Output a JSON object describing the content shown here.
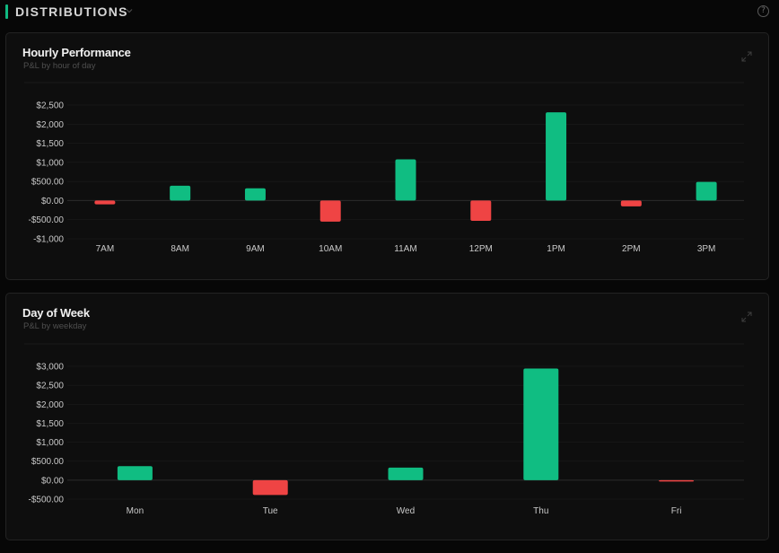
{
  "header": {
    "title": "DISTRIBUTIONS",
    "accent_color": "#10b981",
    "dropdown_icon": "chevron-down-icon",
    "help_icon": "help-circle-icon",
    "help_glyph": "?"
  },
  "colors": {
    "positive": "#10bd82",
    "negative": "#ef4444",
    "axis_text": "#c9c9c9",
    "grid": "#1c1c1c"
  },
  "panels": {
    "hourly": {
      "title": "Hourly Performance",
      "subtitle": "P&L by hour of day",
      "expand_icon": "expand-icon"
    },
    "weekday": {
      "title": "Day of Week",
      "subtitle": "P&L by weekday",
      "expand_icon": "expand-icon"
    }
  },
  "chart_data": [
    {
      "type": "bar",
      "title": "Hourly Performance",
      "subtitle": "P&L by hour of day",
      "categories": [
        "7AM",
        "8AM",
        "9AM",
        "10AM",
        "11AM",
        "12PM",
        "1PM",
        "2PM",
        "3PM"
      ],
      "values": [
        -100,
        390,
        320,
        -550,
        1080,
        -530,
        2310,
        -150,
        490
      ],
      "yticks": [
        2500,
        2000,
        1500,
        1000,
        500,
        0,
        -500,
        -1000
      ],
      "ytick_labels": [
        "$2,500",
        "$2,000",
        "$1,500",
        "$1,000",
        "$500.00",
        "$0.00",
        "-$500.00",
        "-$1,000"
      ],
      "ylim": [
        -1000,
        2500
      ],
      "grid": false,
      "legend": "none"
    },
    {
      "type": "bar",
      "title": "Day of Week",
      "subtitle": "P&L by weekday",
      "categories": [
        "Mon",
        "Tue",
        "Wed",
        "Thu",
        "Fri"
      ],
      "values": [
        370,
        -390,
        330,
        2940,
        -30
      ],
      "yticks": [
        3000,
        2500,
        2000,
        1500,
        1000,
        500,
        0,
        -500
      ],
      "ytick_labels": [
        "$3,000",
        "$2,500",
        "$2,000",
        "$1,500",
        "$1,000",
        "$500.00",
        "$0.00",
        "-$500.00"
      ],
      "ylim": [
        -500,
        3000
      ],
      "grid": false,
      "legend": "none"
    }
  ]
}
